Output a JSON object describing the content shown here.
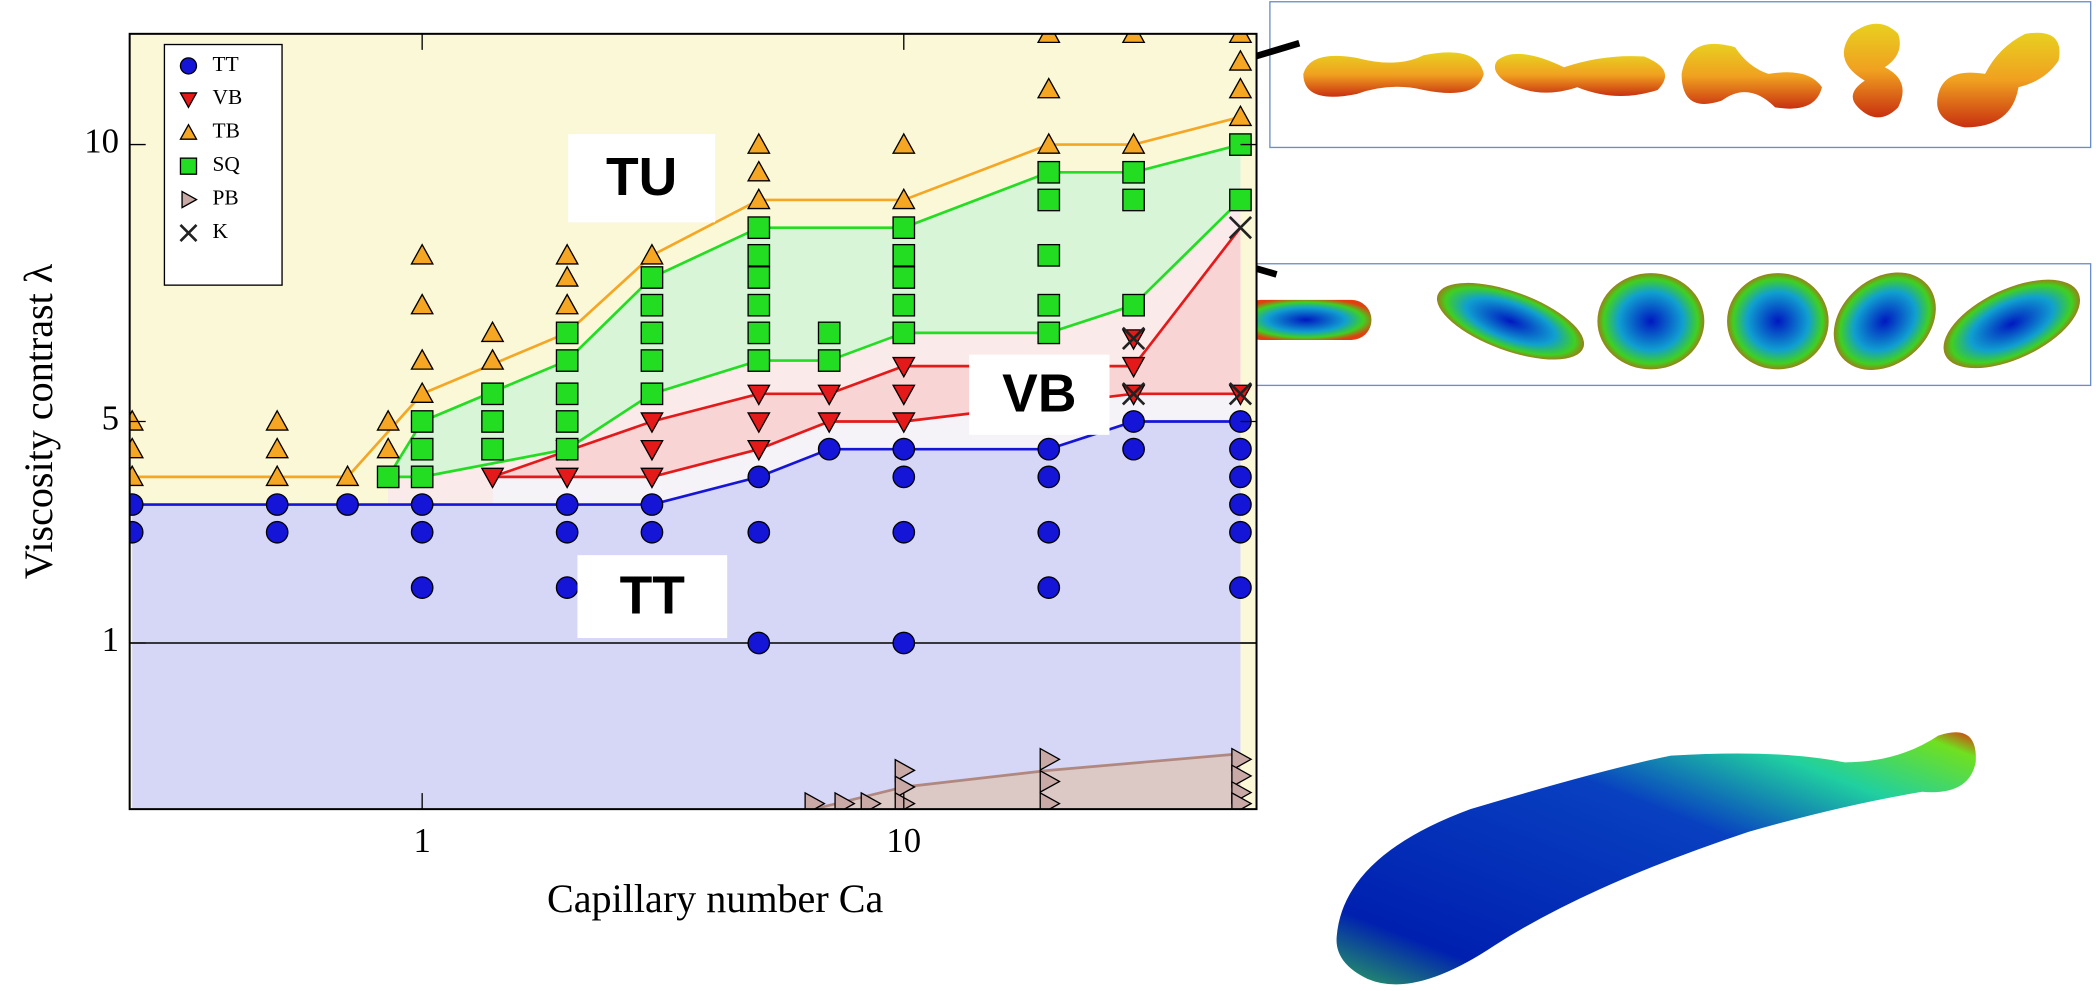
{
  "chart_data": {
    "type": "scatter",
    "xlabel": "Capillary number Ca",
    "ylabel": "Viscosity contrast λ",
    "xlim": [
      0.247,
      54
    ],
    "ylim": [
      -2,
      12
    ],
    "xscale": "log",
    "xticks": [
      1,
      10
    ],
    "yticks": [
      1,
      5,
      10
    ],
    "background": "#fbf8d8",
    "reference_line": 1,
    "legend": "upper left",
    "annotations": [
      "TU",
      "VB",
      "TT"
    ],
    "series": [
      {
        "name": "TT",
        "marker": "circle",
        "color": "#1515d8",
        "x": [
          0.25,
          0.25,
          0.5,
          0.5,
          0.7,
          1,
          1,
          1,
          2,
          2,
          2,
          3,
          3,
          5,
          5,
          5,
          7,
          10,
          10,
          10,
          10,
          20,
          20,
          20,
          20,
          30,
          30,
          50,
          50,
          50,
          50,
          50,
          50
        ],
        "values": [
          3.5,
          3,
          3.5,
          3,
          3.5,
          3.5,
          3,
          2,
          3.5,
          3,
          2,
          3.5,
          3,
          4,
          3,
          1,
          4.5,
          4.5,
          4,
          3,
          1,
          4.5,
          4,
          3,
          2,
          5,
          4.5,
          5,
          4.5,
          4,
          3.5,
          3,
          2
        ]
      },
      {
        "name": "VB",
        "marker": "triangle-down",
        "color": "#e41a1a",
        "x": [
          1.4,
          2,
          2,
          3,
          3,
          3,
          5,
          5,
          5,
          7,
          7,
          10,
          10,
          10,
          20,
          30,
          30,
          30,
          50
        ],
        "values": [
          4,
          4.5,
          4,
          5,
          4.5,
          4,
          5.5,
          5,
          4.5,
          5.5,
          5,
          6,
          5.5,
          5,
          5.5,
          6.5,
          6,
          5.5,
          5.5
        ]
      },
      {
        "name": "TB",
        "marker": "triangle-up",
        "color": "#f5a623",
        "x": [
          0.25,
          0.25,
          0.25,
          0.5,
          0.5,
          0.5,
          0.7,
          0.85,
          0.85,
          1,
          1,
          1,
          1,
          1.4,
          1.4,
          2,
          2,
          2,
          3,
          5,
          5,
          5,
          10,
          10,
          20,
          20,
          20,
          30,
          30,
          50,
          50,
          50,
          50
        ],
        "values": [
          5,
          4.5,
          4,
          5,
          4.5,
          4,
          4,
          5,
          4.5,
          8,
          7.1,
          6.1,
          5.5,
          6.6,
          6.1,
          8,
          7.6,
          7.1,
          8,
          10,
          9.5,
          9,
          10,
          9,
          12,
          11,
          10,
          12,
          10,
          12,
          11.5,
          11,
          10.5
        ]
      },
      {
        "name": "SQ",
        "marker": "square",
        "color": "#22dd22",
        "x": [
          0.85,
          1,
          1,
          1,
          1.4,
          1.4,
          1.4,
          2,
          2,
          2,
          2,
          2,
          3,
          3,
          3,
          3,
          3,
          5,
          5,
          5,
          5,
          5,
          5,
          7,
          7,
          10,
          10,
          10,
          10,
          10,
          20,
          20,
          20,
          20,
          20,
          30,
          30,
          30,
          50,
          50
        ],
        "values": [
          4,
          5,
          4.5,
          4,
          5.5,
          5,
          4.5,
          6.6,
          6.1,
          5.5,
          5,
          4.5,
          7.6,
          7.1,
          6.6,
          6.1,
          5.5,
          8.5,
          8,
          7.6,
          7.1,
          6.6,
          6.1,
          6.6,
          6.1,
          8.5,
          8,
          7.6,
          7.1,
          6.6,
          9.5,
          9,
          8,
          7.1,
          6.6,
          9.5,
          9,
          7.1,
          10,
          9
        ]
      },
      {
        "name": "PB",
        "marker": "triangle-right",
        "color": "#c9a9a6",
        "x": [
          6.5,
          7.5,
          8.5,
          10,
          10,
          10,
          20,
          20,
          20,
          50,
          50,
          50,
          50
        ],
        "values": [
          -1.9,
          -1.9,
          -1.9,
          -1.3,
          -1.6,
          -1.9,
          -1.1,
          -1.5,
          -1.9,
          -1.1,
          -1.4,
          -1.7,
          -1.9
        ]
      },
      {
        "name": "K",
        "marker": "x",
        "color": "#222222",
        "x": [
          30,
          30,
          50,
          50
        ],
        "values": [
          6.5,
          5.5,
          8.5,
          5.5
        ]
      }
    ],
    "boundaries": [
      {
        "color": "#f5a623",
        "x": [
          0.25,
          0.7,
          1,
          2,
          3,
          5,
          10,
          20,
          30,
          50
        ],
        "values": [
          4,
          4,
          5.5,
          6.6,
          8,
          9,
          9,
          10,
          10,
          10.5
        ]
      },
      {
        "color": "#22dd22",
        "fill": "#d8f5d8",
        "x": [
          0.85,
          1,
          2,
          3,
          5,
          10,
          20,
          30,
          50
        ],
        "values": [
          4,
          5,
          6.1,
          7.6,
          8.5,
          8.5,
          9.5,
          9.5,
          10
        ]
      },
      {
        "color": "#22dd22",
        "fill": "#fbeaea",
        "x": [
          0.85,
          1,
          2,
          3,
          5,
          7,
          10,
          20,
          30,
          50
        ],
        "values": [
          4,
          4,
          4.5,
          5.5,
          6.1,
          6.1,
          6.6,
          6.6,
          7.1,
          9
        ]
      },
      {
        "color": "#e41a1a",
        "fill": "#f8d4d4",
        "x": [
          1.4,
          3,
          5,
          7,
          10,
          30,
          50
        ],
        "values": [
          4,
          5,
          5.5,
          5.5,
          6,
          6,
          8.5
        ]
      },
      {
        "color": "#e41a1a",
        "fill": "#f5f2f8",
        "x": [
          1.4,
          3,
          5,
          7,
          10,
          30,
          50
        ],
        "values": [
          4,
          4,
          4.5,
          5,
          5,
          5.5,
          5.5
        ]
      },
      {
        "color": "#1515d8",
        "fill": "#d6d6f7",
        "x": [
          0.25,
          3,
          5,
          7,
          20,
          30,
          50
        ],
        "values": [
          3.5,
          3.5,
          4,
          4.5,
          4.5,
          5,
          5
        ]
      },
      {
        "color": "#b08880",
        "fill": "#dcc8c4",
        "x": [
          6.5,
          10,
          20,
          50
        ],
        "values": [
          -2,
          -1.6,
          -1.3,
          -1.0
        ]
      }
    ]
  }
}
